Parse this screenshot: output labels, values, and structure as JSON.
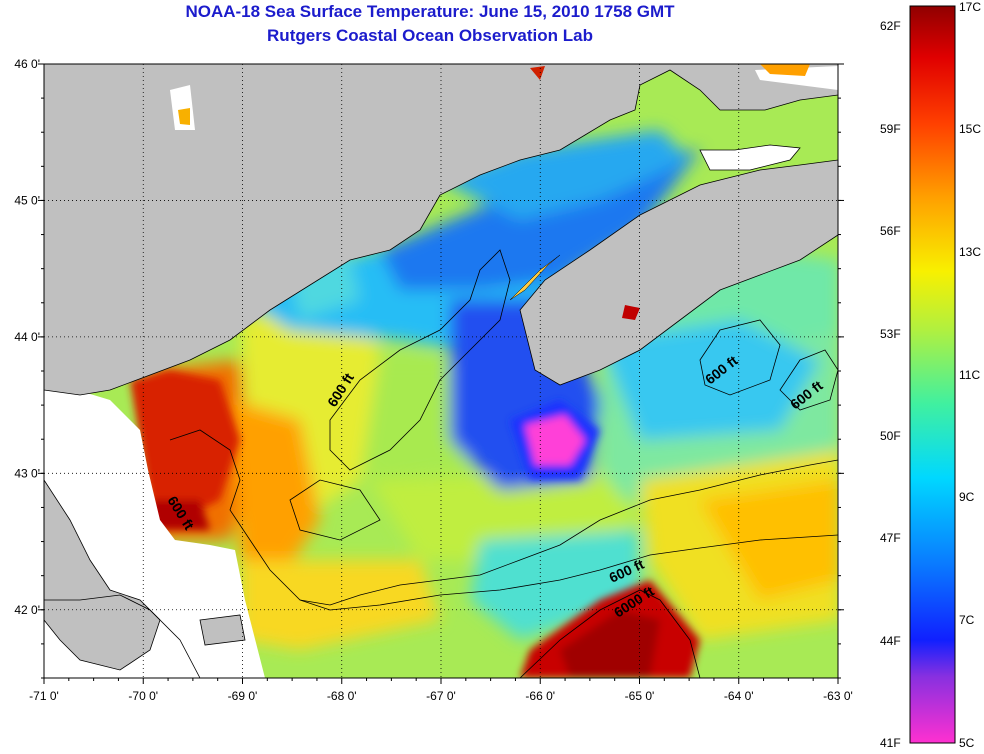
{
  "header": {
    "title": "NOAA-18 Sea Surface Temperature:  June 15, 2010 1758 GMT",
    "subtitle": "Rutgers Coastal Ocean Observation Lab"
  },
  "map": {
    "lon_range": [
      -71,
      -63
    ],
    "lat_range": [
      41.5,
      46.0
    ],
    "lon_ticks": [
      "-71 0'",
      "-70 0'",
      "-69 0'",
      "-68 0'",
      "-67 0'",
      "-66 0'",
      "-65 0'",
      "-64 0'",
      "-63 0'"
    ],
    "lat_ticks": [
      "46 0'",
      "45 0'",
      "44 0'",
      "43 0'",
      "42 0'"
    ],
    "contour_labels": [
      "600 ft",
      "600 ft",
      "600 ft",
      "600 ft",
      "600 ft",
      "6000 ft"
    ],
    "grid": "dotted",
    "colors": {
      "land": "#c0c0c0",
      "cloud": "#ffffff",
      "contour": "#000000"
    }
  },
  "colorbar": {
    "fahrenheit_labels": [
      "62F",
      "59F",
      "56F",
      "53F",
      "50F",
      "47F",
      "44F",
      "41F"
    ],
    "celsius_labels": [
      "17C",
      "15C",
      "13C",
      "11C",
      "9C",
      "7C",
      "5C"
    ],
    "range_c": [
      5,
      17
    ],
    "colors": [
      "#ff30d0",
      "#8830e0",
      "#1020ff",
      "#0a78ff",
      "#00d8ff",
      "#40f0a0",
      "#b0f040",
      "#f8f000",
      "#ffa000",
      "#ff4000",
      "#e00000",
      "#900000"
    ]
  }
}
